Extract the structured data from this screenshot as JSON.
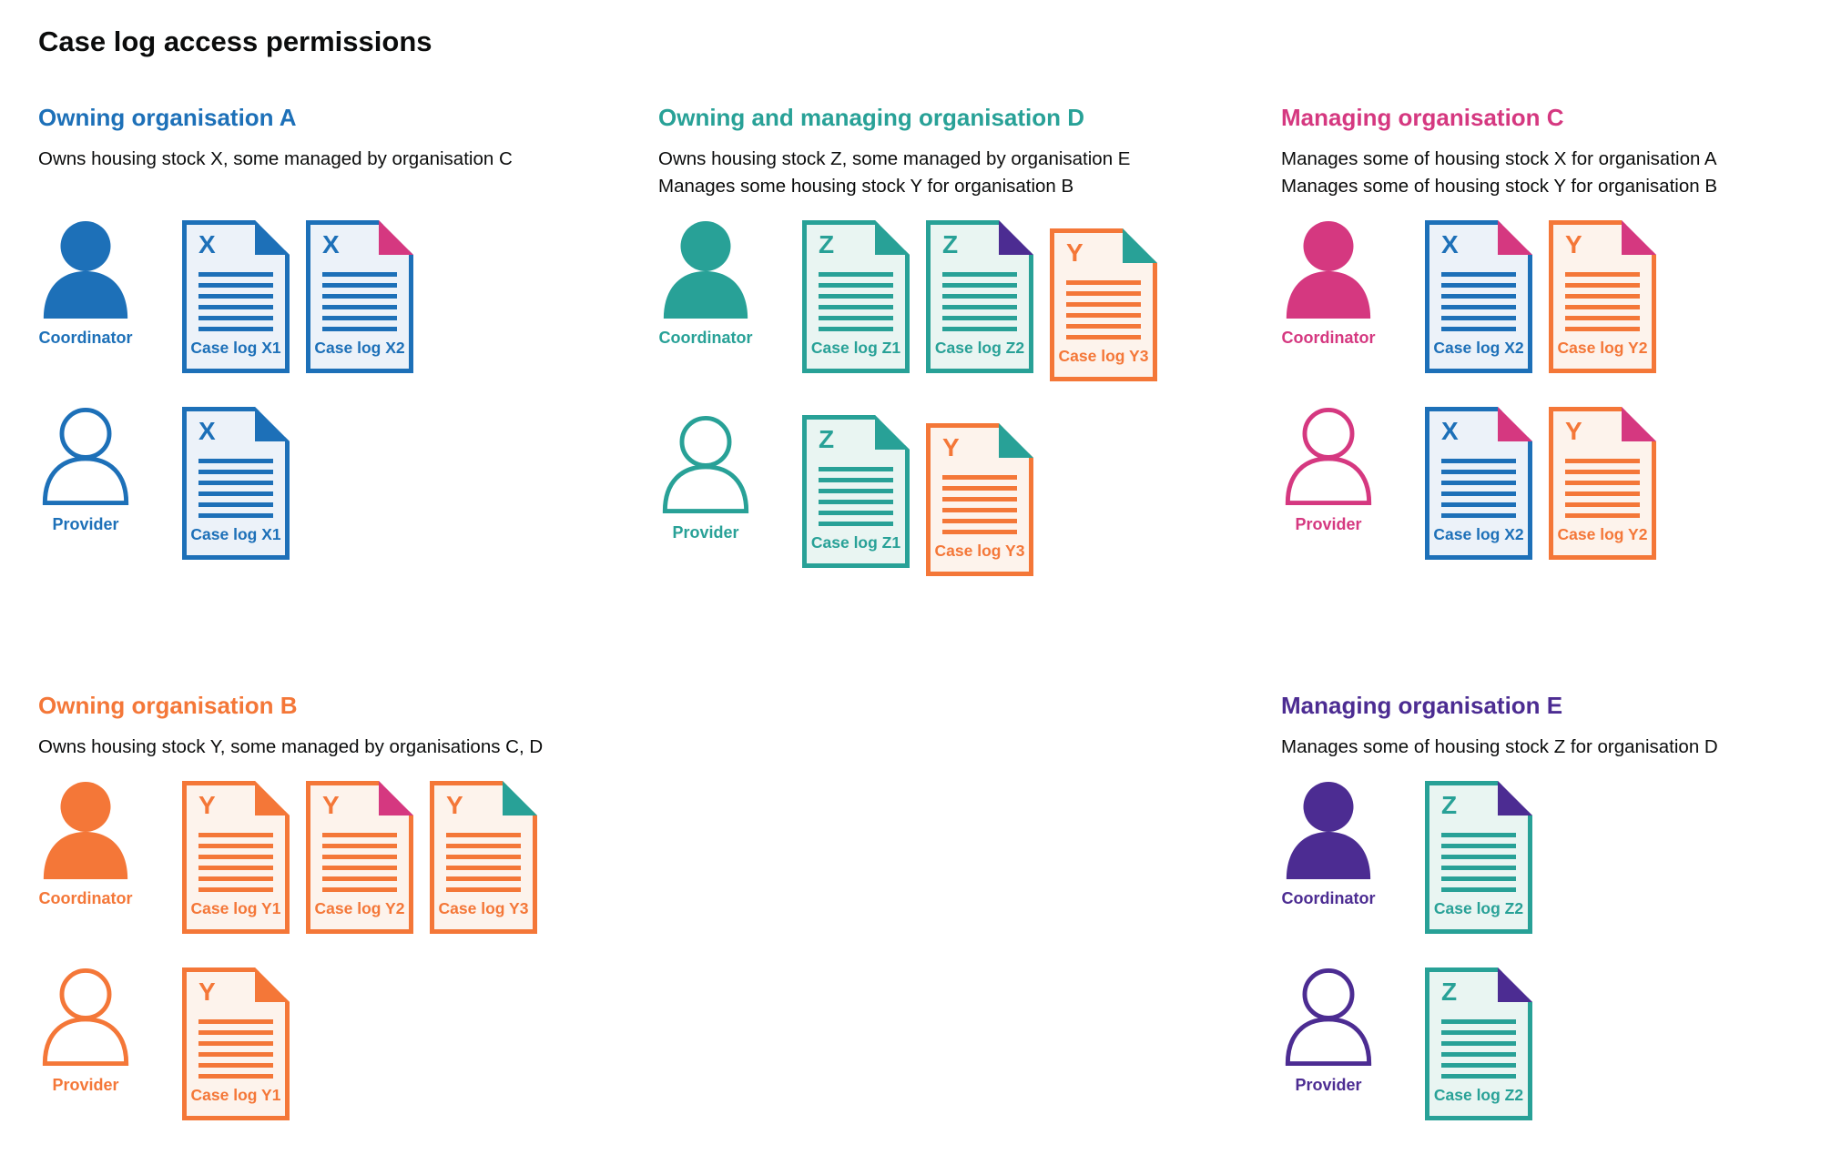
{
  "title": "Case log access permissions",
  "colors": {
    "blue": "#1d70b8",
    "teal": "#28a197",
    "pink": "#d53880",
    "orange": "#f47738",
    "purple": "#4c2c92",
    "blue_light": "#ecf2f9",
    "teal_light": "#e9f5f2",
    "orange_light": "#fdf3ec",
    "text": "#0b0c0c"
  },
  "sections": [
    {
      "id": "owning-organisation-a",
      "heading": "Owning organisation A",
      "color": "blue",
      "description": [
        "Owns housing stock X, some managed by organisation C"
      ],
      "rows": [
        {
          "role": "Coordinator",
          "icon": "filled",
          "docs": [
            {
              "letter": "X",
              "label": "Case log X1",
              "color": "blue",
              "corner": "blue"
            },
            {
              "letter": "X",
              "label": "Case log X2",
              "color": "blue",
              "corner": "pink"
            }
          ]
        },
        {
          "role": "Provider",
          "icon": "outline",
          "docs": [
            {
              "letter": "X",
              "label": "Case log X1",
              "color": "blue",
              "corner": "blue"
            }
          ]
        }
      ]
    },
    {
      "id": "owning-and-managing-organisation-d",
      "heading": "Owning and managing organisation D",
      "color": "teal",
      "description": [
        "Owns housing stock Z, some managed by organisation E",
        "Manages some housing stock Y for organisation B"
      ],
      "rows": [
        {
          "role": "Coordinator",
          "icon": "filled",
          "docs": [
            {
              "letter": "Z",
              "label": "Case log Z1",
              "color": "teal",
              "corner": "teal"
            },
            {
              "letter": "Z",
              "label": "Case log Z2",
              "color": "teal",
              "corner": "purple"
            },
            {
              "letter": "Y",
              "label": "Case log Y3",
              "color": "orange",
              "corner": "teal",
              "offset": true
            }
          ]
        },
        {
          "role": "Provider",
          "icon": "outline",
          "docs": [
            {
              "letter": "Z",
              "label": "Case log Z1",
              "color": "teal",
              "corner": "teal"
            },
            {
              "letter": "Y",
              "label": "Case log Y3",
              "color": "orange",
              "corner": "teal",
              "offset": true
            }
          ]
        }
      ]
    },
    {
      "id": "managing-organisation-c",
      "heading": "Managing organisation C",
      "color": "pink",
      "description": [
        "Manages some of housing stock X for organisation A",
        "Manages some of housing stock Y for organisation B"
      ],
      "rows": [
        {
          "role": "Coordinator",
          "icon": "filled",
          "docs": [
            {
              "letter": "X",
              "label": "Case log X2",
              "color": "blue",
              "corner": "pink"
            },
            {
              "letter": "Y",
              "label": "Case log Y2",
              "color": "orange",
              "corner": "pink"
            }
          ]
        },
        {
          "role": "Provider",
          "icon": "outline",
          "docs": [
            {
              "letter": "X",
              "label": "Case log X2",
              "color": "blue",
              "corner": "pink"
            },
            {
              "letter": "Y",
              "label": "Case log Y2",
              "color": "orange",
              "corner": "pink"
            }
          ]
        }
      ]
    },
    {
      "id": "owning-organisation-b",
      "heading": "Owning organisation B",
      "color": "orange",
      "description": [
        "Owns housing stock Y, some managed by organisations C, D"
      ],
      "rows": [
        {
          "role": "Coordinator",
          "icon": "filled",
          "docs": [
            {
              "letter": "Y",
              "label": "Case log Y1",
              "color": "orange",
              "corner": "orange"
            },
            {
              "letter": "Y",
              "label": "Case log Y2",
              "color": "orange",
              "corner": "pink"
            },
            {
              "letter": "Y",
              "label": "Case log Y3",
              "color": "orange",
              "corner": "teal"
            }
          ]
        },
        {
          "role": "Provider",
          "icon": "outline",
          "docs": [
            {
              "letter": "Y",
              "label": "Case log Y1",
              "color": "orange",
              "corner": "orange"
            }
          ]
        }
      ]
    },
    {
      "id": "managing-organisation-e",
      "heading": "Managing organisation E",
      "color": "purple",
      "description": [
        "Manages some of housing stock Z for organisation D"
      ],
      "rows": [
        {
          "role": "Coordinator",
          "icon": "filled",
          "docs": [
            {
              "letter": "Z",
              "label": "Case log Z2",
              "color": "teal",
              "corner": "purple"
            }
          ]
        },
        {
          "role": "Provider",
          "icon": "outline",
          "docs": [
            {
              "letter": "Z",
              "label": "Case log Z2",
              "color": "teal",
              "corner": "purple"
            }
          ]
        }
      ]
    }
  ]
}
